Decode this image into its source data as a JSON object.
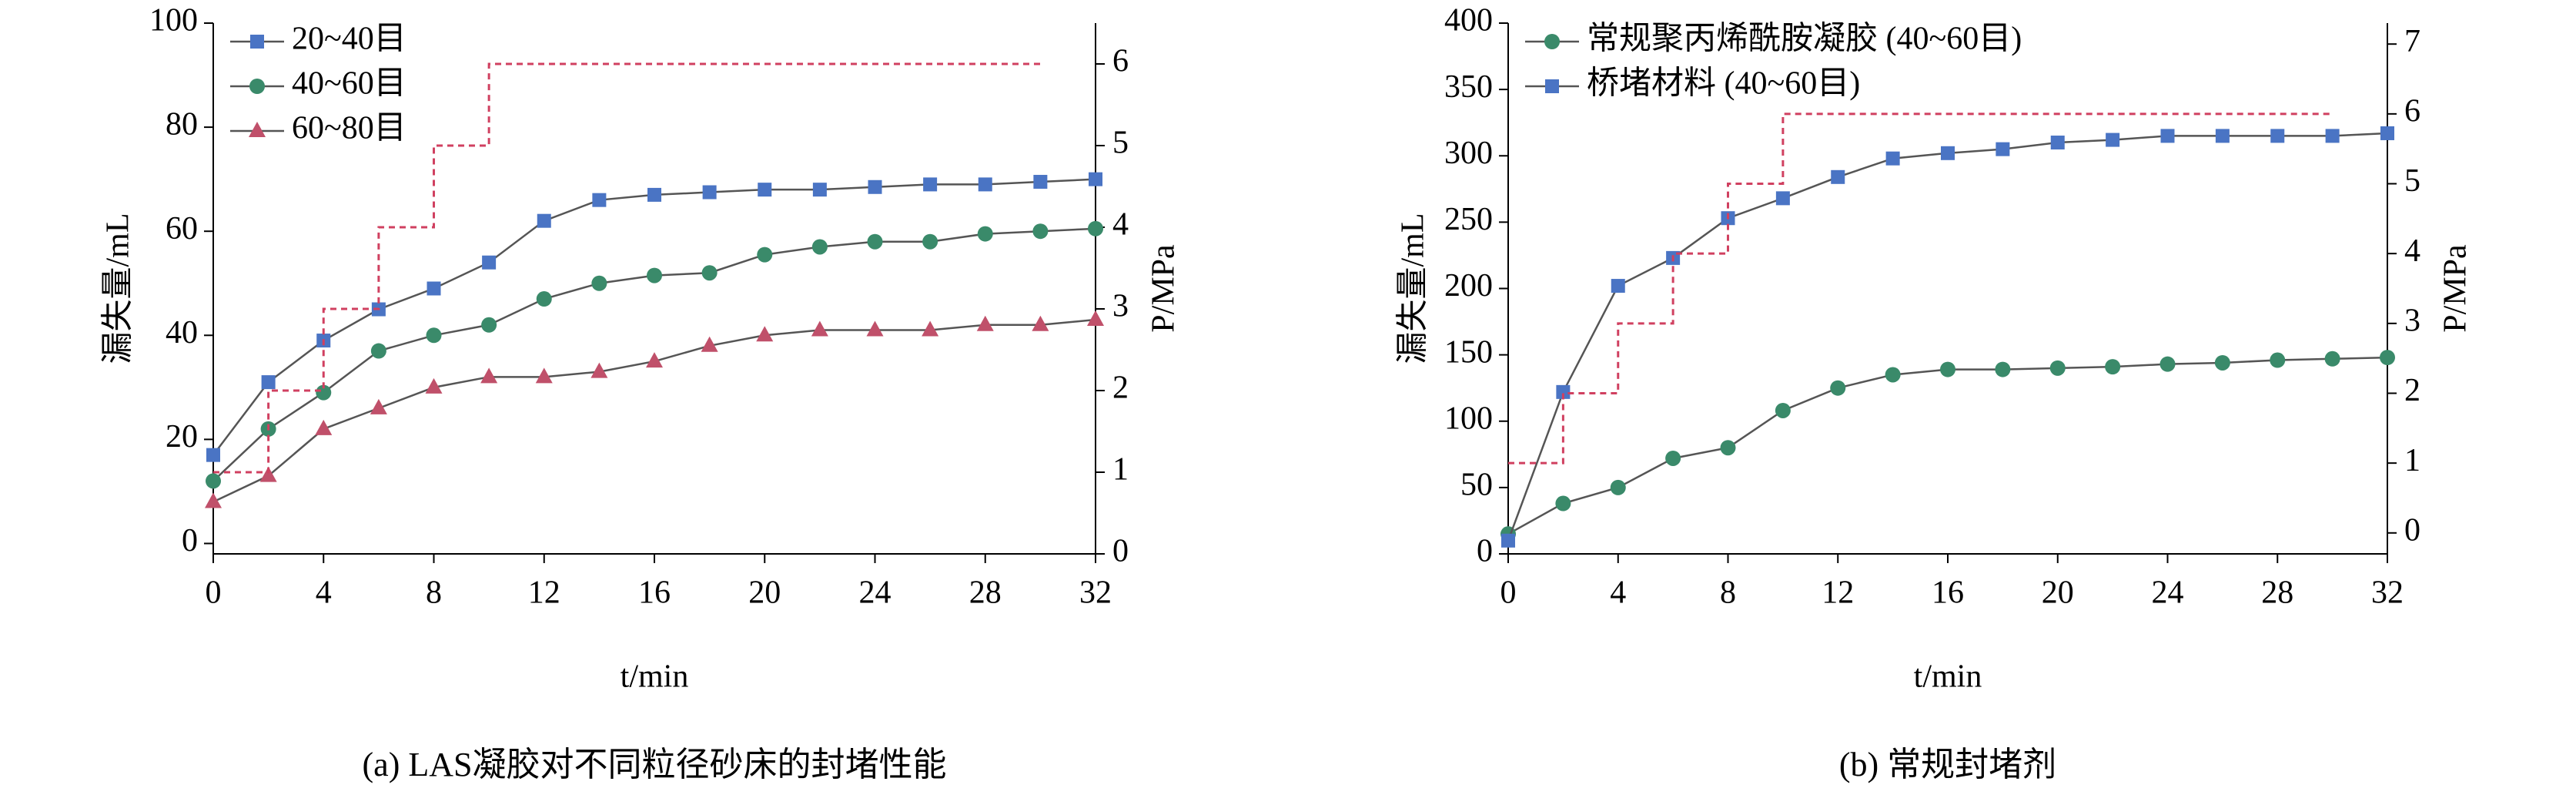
{
  "chart_data": [
    {
      "type": "line",
      "x_label": "t/min",
      "y_label": "漏失量/mL",
      "y2_label": "P/MPa",
      "caption": "(a) LAS凝胶对不同粒径砂床的封堵性能",
      "x": [
        0,
        2,
        4,
        6,
        8,
        10,
        12,
        14,
        16,
        18,
        20,
        22,
        24,
        26,
        28,
        30,
        32
      ],
      "xlim": [
        0,
        32
      ],
      "xticks": [
        0,
        4,
        8,
        12,
        16,
        20,
        24,
        28,
        32
      ],
      "ylim": [
        -2,
        100
      ],
      "yticks": [
        0,
        20,
        40,
        60,
        80,
        100
      ],
      "y2lim": [
        0,
        6.5
      ],
      "y2ticks": [
        0,
        1,
        2,
        3,
        4,
        5,
        6
      ],
      "legend": "upper left",
      "series": [
        {
          "name": "20~40目",
          "color": "#4a74c4",
          "marker": "square",
          "values": [
            17,
            31,
            39,
            45,
            49,
            54,
            62,
            66,
            67,
            67.5,
            68,
            68,
            68.5,
            69,
            69,
            69.5,
            70
          ]
        },
        {
          "name": "40~60目",
          "color": "#3a8a6a",
          "marker": "circle",
          "values": [
            12,
            22,
            29,
            37,
            40,
            42,
            47,
            50,
            51.5,
            52,
            55.5,
            57,
            58,
            58,
            59.5,
            60,
            60.5
          ]
        },
        {
          "name": "60~80目",
          "color": "#c0506a",
          "marker": "triangle",
          "values": [
            8,
            13,
            22,
            26,
            30,
            32,
            32,
            33,
            35,
            38,
            40,
            41,
            41,
            41,
            42,
            42,
            43
          ]
        },
        {
          "color": "#d04060",
          "axis": "y2",
          "dashed": true,
          "x": [
            0,
            2,
            2,
            4,
            4,
            6,
            6,
            8,
            8,
            10,
            10,
            30
          ],
          "values": [
            1,
            1,
            2,
            2,
            3,
            3,
            4,
            4,
            5,
            5,
            6,
            6
          ]
        }
      ]
    },
    {
      "type": "line",
      "x_label": "t/min",
      "y_label": "漏失量/mL",
      "y2_label": "P/MPa",
      "caption": "(b) 常规封堵剂",
      "x": [
        0,
        2,
        4,
        6,
        8,
        10,
        12,
        14,
        16,
        18,
        20,
        22,
        24,
        26,
        28,
        30,
        32
      ],
      "xlim": [
        0,
        32
      ],
      "xticks": [
        0,
        4,
        8,
        12,
        16,
        20,
        24,
        28,
        32
      ],
      "ylim": [
        0,
        400
      ],
      "yticks": [
        0,
        50,
        100,
        150,
        200,
        250,
        300,
        350,
        400
      ],
      "y2lim": [
        -0.3,
        7.3
      ],
      "y2ticks": [
        0,
        1,
        2,
        3,
        4,
        5,
        6,
        7
      ],
      "legend": "upper left",
      "series": [
        {
          "name": "常规聚丙烯酰胺凝胶 (40~60目)",
          "color": "#3a8a6a",
          "marker": "circle",
          "values": [
            15,
            38,
            50,
            72,
            80,
            108,
            125,
            135,
            139,
            139,
            140,
            141,
            143,
            144,
            146,
            147,
            148
          ]
        },
        {
          "name": "桥堵材料 (40~60目)",
          "color": "#4a74c4",
          "marker": "square",
          "values": [
            10,
            122,
            202,
            223,
            253,
            268,
            284,
            298,
            302,
            305,
            310,
            312,
            315,
            315,
            315,
            315,
            317
          ]
        },
        {
          "color": "#d04060",
          "axis": "y2",
          "dashed": true,
          "x": [
            0,
            2,
            2,
            4,
            4,
            6,
            6,
            8,
            8,
            10,
            10,
            30
          ],
          "values": [
            1,
            1,
            2,
            2,
            3,
            3,
            4,
            4,
            5,
            5,
            6,
            6
          ]
        }
      ]
    }
  ]
}
